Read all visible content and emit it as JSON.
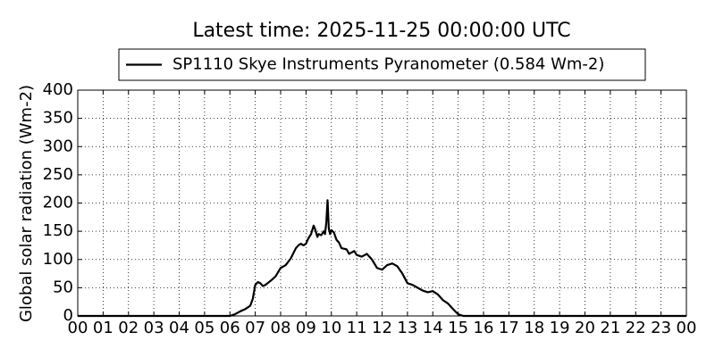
{
  "chart_data": {
    "type": "line",
    "title": "Latest time: 2025-11-25 00:00:00 UTC",
    "y_label": "Global solar radiation (Wm-2)",
    "legend": "upper center",
    "grid": true,
    "x": [
      0,
      6,
      6.2,
      6.4,
      6.6,
      6.8,
      6.9,
      7.0,
      7.1,
      7.2,
      7.3,
      7.4,
      7.6,
      7.8,
      8.0,
      8.2,
      8.4,
      8.6,
      8.7,
      8.8,
      8.9,
      9.0,
      9.1,
      9.2,
      9.3,
      9.35,
      9.45,
      9.5,
      9.6,
      9.7,
      9.75,
      9.8,
      9.85,
      9.9,
      9.95,
      10.0,
      10.1,
      10.2,
      10.3,
      10.4,
      10.6,
      10.7,
      10.9,
      11.0,
      11.2,
      11.4,
      11.6,
      11.8,
      12.0,
      12.2,
      12.4,
      12.6,
      12.8,
      13.0,
      13.2,
      13.4,
      13.6,
      13.8,
      14.0,
      14.2,
      14.4,
      14.6,
      14.8,
      15.0,
      15.2,
      24
    ],
    "series": [
      {
        "name": "SP1110 Skye Instruments Pyranometer (0.584 Wm-2)",
        "color": "#000000",
        "values": [
          0,
          0,
          3,
          8,
          12,
          18,
          30,
          55,
          60,
          58,
          53,
          55,
          62,
          70,
          85,
          90,
          102,
          120,
          125,
          128,
          125,
          128,
          138,
          145,
          160,
          155,
          140,
          145,
          143,
          150,
          145,
          165,
          205,
          155,
          145,
          152,
          148,
          135,
          130,
          120,
          118,
          110,
          115,
          108,
          105,
          110,
          100,
          85,
          82,
          90,
          93,
          88,
          75,
          58,
          55,
          50,
          45,
          42,
          44,
          38,
          28,
          22,
          12,
          3,
          0,
          0
        ]
      }
    ],
    "xlim": [
      0,
      24
    ],
    "xticks": [
      {
        "value": 0,
        "label": "00"
      },
      {
        "value": 1,
        "label": "01"
      },
      {
        "value": 2,
        "label": "02"
      },
      {
        "value": 3,
        "label": "03"
      },
      {
        "value": 4,
        "label": "04"
      },
      {
        "value": 5,
        "label": "05"
      },
      {
        "value": 6,
        "label": "06"
      },
      {
        "value": 7,
        "label": "07"
      },
      {
        "value": 8,
        "label": "08"
      },
      {
        "value": 9,
        "label": "09"
      },
      10,
      11,
      12,
      13,
      14,
      15,
      16,
      17,
      18,
      19,
      20,
      21,
      22,
      23,
      {
        "value": 24,
        "label": "00"
      }
    ],
    "ylim": [
      0,
      400
    ],
    "yticks": [
      0,
      50,
      100,
      150,
      200,
      250,
      300,
      350,
      400
    ]
  }
}
